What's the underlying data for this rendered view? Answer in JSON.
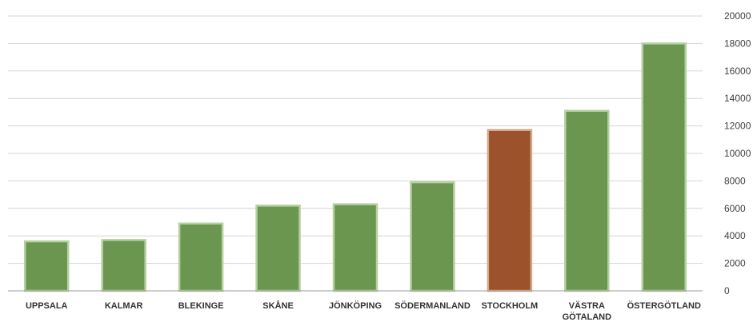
{
  "chart_data": {
    "type": "bar",
    "categories": [
      [
        "UPPSALA"
      ],
      [
        "KALMAR"
      ],
      [
        "BLEKINGE"
      ],
      [
        "SKÅNE"
      ],
      [
        "JÖNKÖPING"
      ],
      [
        "SÖDERMANLAND"
      ],
      [
        "STOCKHOLM"
      ],
      [
        "VÄSTRA",
        "GÖTALAND"
      ],
      [
        "ÖSTERGÖTLAND"
      ]
    ],
    "values": [
      3600,
      3700,
      4900,
      6200,
      6300,
      7900,
      11700,
      13100,
      18000
    ],
    "highlight_index": 6,
    "ylim": [
      0,
      20000
    ],
    "yticks": [
      0,
      2000,
      4000,
      6000,
      8000,
      10000,
      12000,
      14000,
      16000,
      18000,
      20000
    ],
    "y_axis_side": "right",
    "grid": true,
    "legend": "none",
    "title": "",
    "xlabel": "",
    "ylabel": "",
    "colors": {
      "bar": "#6b9650",
      "bar_border": "#b6d0a0",
      "highlight": "#9c532b",
      "highlight_border": "#d2a98a",
      "grid": "#d4d4d4",
      "axis": "#9a9a9a"
    }
  }
}
